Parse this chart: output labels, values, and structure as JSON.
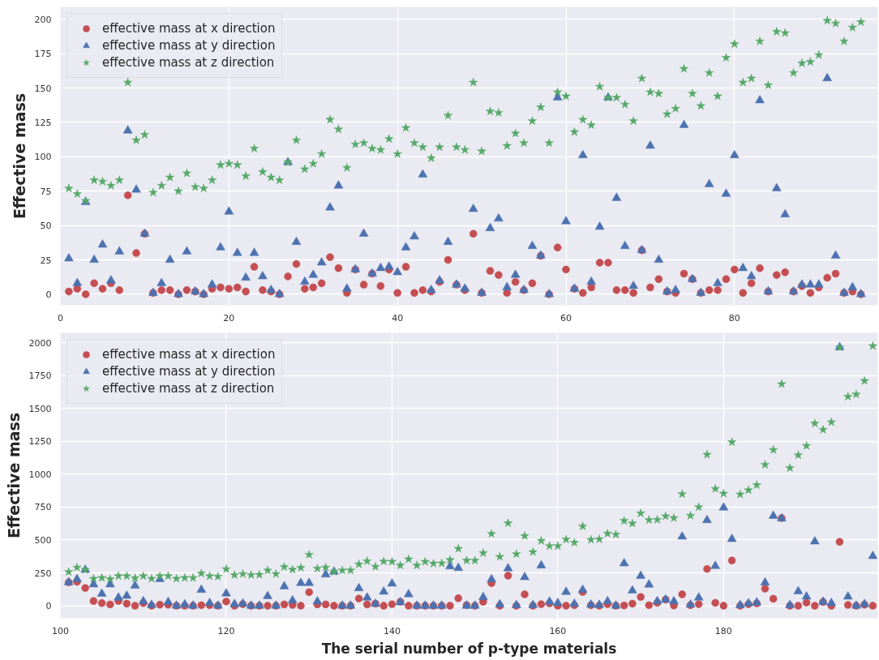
{
  "chart_data": [
    {
      "type": "scatter",
      "ylabel": "Effective mass",
      "xlim": [
        0,
        97
      ],
      "ylim": [
        -8,
        209
      ],
      "xticks": [
        0,
        20,
        40,
        60,
        80
      ],
      "yticks": [
        0,
        25,
        50,
        75,
        100,
        125,
        150,
        175,
        200
      ],
      "grid": true,
      "legend": "top left",
      "x": [
        1,
        2,
        3,
        4,
        5,
        6,
        7,
        8,
        9,
        10,
        11,
        12,
        13,
        14,
        15,
        16,
        17,
        18,
        19,
        20,
        21,
        22,
        23,
        24,
        25,
        26,
        27,
        28,
        29,
        30,
        31,
        32,
        33,
        34,
        35,
        36,
        37,
        38,
        39,
        40,
        41,
        42,
        43,
        44,
        45,
        46,
        47,
        48,
        49,
        50,
        51,
        52,
        53,
        54,
        55,
        56,
        57,
        58,
        59,
        60,
        61,
        62,
        63,
        64,
        65,
        66,
        67,
        68,
        69,
        70,
        71,
        72,
        73,
        74,
        75,
        76,
        77,
        78,
        79,
        80,
        81,
        82,
        83,
        84,
        85,
        86,
        87,
        88,
        89,
        90,
        91,
        92,
        93,
        94,
        95
      ],
      "series": [
        {
          "name": "effective mass at x direction",
          "color": "#c44e52",
          "marker": "circle",
          "values": [
            2,
            4,
            0,
            8,
            4,
            8,
            3,
            72,
            30,
            44,
            1,
            3,
            3,
            0,
            3,
            2,
            0,
            4,
            5,
            4,
            5,
            2,
            20,
            3,
            2,
            0,
            13,
            22,
            4,
            5,
            8,
            27,
            19,
            1,
            18,
            7,
            15,
            6,
            18,
            1,
            20,
            1,
            3,
            2,
            9,
            25,
            7,
            3,
            44,
            1,
            17,
            14,
            1,
            9,
            3,
            8,
            28,
            0,
            34,
            18,
            4,
            1,
            5,
            23,
            23,
            3,
            3,
            1,
            32,
            5,
            11,
            2,
            1,
            15,
            11,
            1,
            3,
            3,
            11,
            18,
            1,
            8,
            19,
            2,
            14,
            16,
            2,
            6,
            1,
            5,
            12,
            15,
            1,
            2,
            0
          ]
        },
        {
          "name": "effective mass at y direction",
          "color": "#4c72b0",
          "marker": "triangle",
          "values": [
            26,
            8,
            67,
            25,
            36,
            10,
            31,
            119,
            76,
            44,
            1,
            8,
            25,
            0,
            31,
            2,
            0,
            7,
            34,
            60,
            30,
            12,
            30,
            13,
            3,
            0,
            96,
            38,
            9,
            14,
            23,
            63,
            79,
            4,
            18,
            44,
            15,
            19,
            20,
            16,
            34,
            42,
            87,
            3,
            10,
            38,
            7,
            4,
            62,
            1,
            48,
            55,
            5,
            14,
            3,
            35,
            28,
            0,
            143,
            53,
            4,
            101,
            9,
            49,
            143,
            70,
            35,
            6,
            32,
            108,
            25,
            2,
            3,
            123,
            11,
            1,
            80,
            8,
            73,
            101,
            19,
            13,
            141,
            2,
            77,
            58,
            2,
            7,
            7,
            7,
            157,
            28,
            1,
            5,
            0
          ]
        },
        {
          "name": "effective mass at z direction",
          "color": "#55a868",
          "marker": "star",
          "values": [
            77,
            73,
            68,
            83,
            82,
            79,
            83,
            154,
            112,
            116,
            74,
            79,
            85,
            75,
            88,
            78,
            77,
            83,
            94,
            95,
            94,
            86,
            106,
            89,
            85,
            83,
            96,
            112,
            91,
            95,
            102,
            127,
            120,
            92,
            109,
            110,
            106,
            105,
            113,
            102,
            121,
            110,
            107,
            99,
            107,
            130,
            107,
            105,
            154,
            104,
            133,
            132,
            108,
            117,
            110,
            126,
            136,
            110,
            147,
            144,
            118,
            127,
            123,
            151,
            143,
            143,
            138,
            126,
            157,
            147,
            146,
            131,
            135,
            164,
            146,
            137,
            161,
            144,
            172,
            182,
            154,
            157,
            184,
            152,
            191,
            190,
            161,
            168,
            169,
            174,
            199,
            197,
            184,
            194,
            198
          ]
        }
      ]
    },
    {
      "type": "scatter",
      "ylabel": "Effective mass",
      "xlabel": "The serial number of p-type materials",
      "xlim": [
        100,
        198.6
      ],
      "ylim": [
        -95,
        2075
      ],
      "xticks": [
        100,
        120,
        140,
        160,
        180
      ],
      "yticks": [
        0,
        250,
        500,
        750,
        1000,
        1250,
        1500,
        1750,
        2000
      ],
      "grid": true,
      "legend": "top left",
      "x": [
        101,
        102,
        103,
        104,
        105,
        106,
        107,
        108,
        109,
        110,
        111,
        112,
        113,
        114,
        115,
        116,
        117,
        118,
        119,
        120,
        121,
        122,
        123,
        124,
        125,
        126,
        127,
        128,
        129,
        130,
        131,
        132,
        133,
        134,
        135,
        136,
        137,
        138,
        139,
        140,
        141,
        142,
        143,
        144,
        145,
        146,
        147,
        148,
        149,
        150,
        151,
        152,
        153,
        154,
        155,
        156,
        157,
        158,
        159,
        160,
        161,
        162,
        163,
        164,
        165,
        166,
        167,
        168,
        169,
        170,
        171,
        172,
        173,
        174,
        175,
        176,
        177,
        178,
        179,
        180,
        181,
        182,
        183,
        184,
        185,
        186,
        187,
        188,
        189,
        190,
        191,
        192,
        193,
        194,
        195,
        196,
        197,
        198
      ],
      "series": [
        {
          "name": "effective mass at x direction",
          "color": "#c44e52",
          "marker": "circle",
          "values": [
            178,
            182,
            135,
            36,
            20,
            10,
            36,
            16,
            0,
            20,
            0,
            8,
            8,
            0,
            0,
            0,
            4,
            4,
            0,
            32,
            0,
            12,
            0,
            0,
            0,
            0,
            10,
            6,
            0,
            103,
            10,
            10,
            0,
            0,
            0,
            55,
            10,
            16,
            0,
            12,
            30,
            0,
            0,
            0,
            0,
            0,
            0,
            57,
            4,
            0,
            30,
            172,
            0,
            229,
            0,
            87,
            0,
            12,
            18,
            0,
            0,
            4,
            105,
            4,
            0,
            12,
            0,
            2,
            16,
            67,
            4,
            22,
            47,
            2,
            87,
            4,
            12,
            280,
            22,
            0,
            344,
            0,
            12,
            18,
            130,
            53,
            667,
            0,
            0,
            24,
            0,
            28,
            0,
            486,
            6,
            0,
            8,
            0
          ]
        },
        {
          "name": "effective mass at y direction",
          "color": "#4c72b0",
          "marker": "triangle",
          "values": [
            178,
            202,
            273,
            162,
            91,
            162,
            61,
            75,
            152,
            34,
            6,
            202,
            28,
            0,
            10,
            0,
            121,
            20,
            0,
            93,
            12,
            16,
            0,
            0,
            73,
            0,
            147,
            40,
            172,
            172,
            32,
            238,
            259,
            0,
            0,
            133,
            61,
            14,
            107,
            168,
            26,
            87,
            0,
            0,
            0,
            0,
            299,
            287,
            0,
            0,
            65,
            201,
            10,
            284,
            4,
            217,
            4,
            306,
            30,
            20,
            105,
            14,
            120,
            8,
            6,
            34,
            0,
            322,
            115,
            227,
            160,
            34,
            47,
            34,
            525,
            8,
            61,
            650,
            302,
            746,
            507,
            4,
            18,
            24,
            176,
            683,
            663,
            4,
            109,
            69,
            488,
            30,
            20,
            1965,
            69,
            0,
            12,
            377
          ]
        },
        {
          "name": "effective mass at z direction",
          "color": "#55a868",
          "marker": "star",
          "values": [
            257,
            291,
            273,
            206,
            212,
            202,
            226,
            226,
            210,
            226,
            206,
            226,
            226,
            206,
            212,
            212,
            246,
            226,
            222,
            279,
            234,
            242,
            234,
            236,
            269,
            242,
            295,
            275,
            289,
            388,
            283,
            291,
            259,
            269,
            269,
            315,
            339,
            297,
            337,
            335,
            307,
            354,
            307,
            335,
            321,
            323,
            349,
            434,
            344,
            344,
            401,
            547,
            373,
            628,
            393,
            531,
            409,
            494,
            454,
            454,
            504,
            480,
            604,
            502,
            506,
            549,
            541,
            646,
            626,
            703,
            652,
            654,
            681,
            667,
            849,
            685,
            750,
            1149,
            889,
            853,
            1244,
            847,
            879,
            918,
            1072,
            1185,
            1686,
            1047,
            1145,
            1216,
            1386,
            1339,
            1396,
            1965,
            1590,
            1607,
            1710,
            1975
          ]
        }
      ]
    }
  ]
}
